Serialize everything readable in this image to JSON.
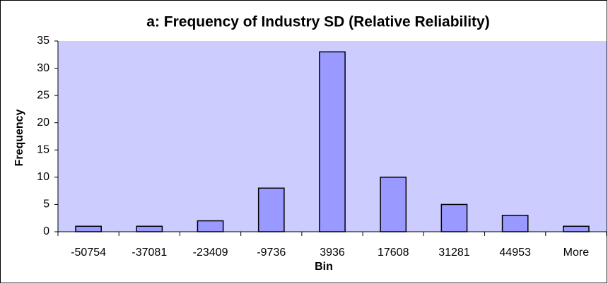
{
  "chart_data": {
    "type": "bar",
    "title": "a: Frequency of Industry SD (Relative Reliability)",
    "xlabel": "Bin",
    "ylabel": "Frequency",
    "categories": [
      "-50754",
      "-37081",
      "-23409",
      "-9736",
      "3936",
      "17608",
      "31281",
      "44953",
      "More"
    ],
    "values": [
      1,
      1,
      2,
      8,
      33,
      10,
      5,
      3,
      1
    ],
    "color": "#9999ff",
    "ylim": [
      0,
      35
    ],
    "yticks": [
      0,
      5,
      10,
      15,
      20,
      25,
      30,
      35
    ],
    "grid": false
  }
}
